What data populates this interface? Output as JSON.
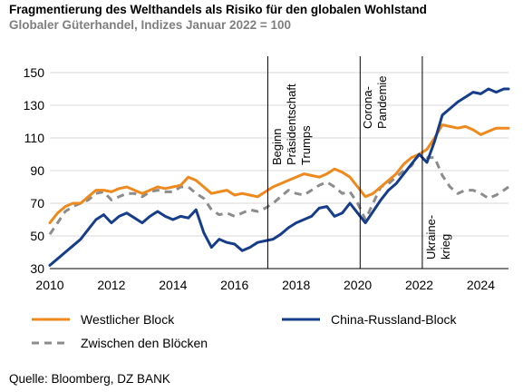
{
  "title": "Fragmentierung des Welthandels als Risiko für den globalen Wohlstand",
  "subtitle": "Globaler Güterhandel, Indizes Januar 2022 = 100",
  "source": "Quelle: Bloomberg, DZ BANK",
  "colors": {
    "westlich": "#ee8a1d",
    "china": "#163d8a",
    "zwischen": "#8c8c8c",
    "grid": "#d9d9d9",
    "event_line": "#000000"
  },
  "chart_data": {
    "type": "line",
    "title": "Fragmentierung des Welthandels als Risiko für den globalen Wohlstand",
    "subtitle": "Globaler Güterhandel, Indizes Januar 2022 = 100",
    "xlabel": "",
    "ylabel": "",
    "xlim": [
      2010,
      2024.9
    ],
    "ylim": [
      30,
      160
    ],
    "y_ticks": [
      30,
      50,
      70,
      90,
      110,
      130,
      150
    ],
    "x_ticks": [
      2010,
      2012,
      2014,
      2016,
      2018,
      2020,
      2022,
      2024
    ],
    "grid": true,
    "legend_position": "bottom",
    "series": [
      {
        "name": "Westlicher Block",
        "style": "solid",
        "x": [
          2010.0,
          2010.25,
          2010.5,
          2010.75,
          2011.0,
          2011.25,
          2011.5,
          2011.75,
          2012.0,
          2012.25,
          2012.5,
          2012.75,
          2013.0,
          2013.25,
          2013.5,
          2013.75,
          2014.0,
          2014.25,
          2014.5,
          2014.75,
          2015.0,
          2015.25,
          2015.5,
          2015.75,
          2016.0,
          2016.25,
          2016.5,
          2016.75,
          2017.0,
          2017.25,
          2017.5,
          2017.75,
          2018.0,
          2018.25,
          2018.5,
          2018.75,
          2019.0,
          2019.25,
          2019.5,
          2019.75,
          2020.0,
          2020.25,
          2020.5,
          2020.75,
          2021.0,
          2021.25,
          2021.5,
          2021.75,
          2022.0,
          2022.25,
          2022.5,
          2022.75,
          2023.0,
          2023.25,
          2023.5,
          2023.75,
          2024.0,
          2024.25,
          2024.5,
          2024.75,
          2024.9
        ],
        "values": [
          58,
          64,
          68,
          70,
          70,
          74,
          78,
          78,
          77,
          79,
          80,
          78,
          76,
          78,
          80,
          79,
          80,
          81,
          86,
          84,
          80,
          76,
          77,
          78,
          75,
          76,
          75,
          74,
          77,
          80,
          82,
          84,
          86,
          88,
          87,
          86,
          88,
          91,
          89,
          86,
          80,
          74,
          76,
          80,
          84,
          88,
          94,
          98,
          100,
          103,
          110,
          118,
          117,
          116,
          117,
          115,
          112,
          114,
          116,
          116,
          116
        ]
      },
      {
        "name": "China-Russland-Block",
        "style": "solid",
        "x": [
          2010.0,
          2010.25,
          2010.5,
          2010.75,
          2011.0,
          2011.25,
          2011.5,
          2011.75,
          2012.0,
          2012.25,
          2012.5,
          2012.75,
          2013.0,
          2013.25,
          2013.5,
          2013.75,
          2014.0,
          2014.25,
          2014.5,
          2014.75,
          2015.0,
          2015.25,
          2015.5,
          2015.75,
          2016.0,
          2016.25,
          2016.5,
          2016.75,
          2017.0,
          2017.25,
          2017.5,
          2017.75,
          2018.0,
          2018.25,
          2018.5,
          2018.75,
          2019.0,
          2019.25,
          2019.5,
          2019.75,
          2020.0,
          2020.25,
          2020.5,
          2020.75,
          2021.0,
          2021.25,
          2021.5,
          2021.75,
          2022.0,
          2022.25,
          2022.5,
          2022.75,
          2023.0,
          2023.25,
          2023.5,
          2023.75,
          2024.0,
          2024.25,
          2024.5,
          2024.75,
          2024.9
        ],
        "values": [
          32,
          36,
          40,
          44,
          48,
          54,
          60,
          63,
          58,
          62,
          64,
          61,
          58,
          62,
          65,
          62,
          60,
          62,
          61,
          66,
          52,
          43,
          48,
          46,
          45,
          41,
          43,
          46,
          47,
          48,
          51,
          55,
          58,
          60,
          62,
          67,
          68,
          62,
          64,
          70,
          64,
          58,
          65,
          72,
          78,
          82,
          88,
          94,
          100,
          95,
          108,
          124,
          128,
          132,
          135,
          138,
          137,
          140,
          138,
          140,
          140
        ]
      },
      {
        "name": "Zwischen den Blöcken",
        "style": "dashed",
        "x": [
          2010.0,
          2010.25,
          2010.5,
          2010.75,
          2011.0,
          2011.25,
          2011.5,
          2011.75,
          2012.0,
          2012.25,
          2012.5,
          2012.75,
          2013.0,
          2013.25,
          2013.5,
          2013.75,
          2014.0,
          2014.25,
          2014.5,
          2014.75,
          2015.0,
          2015.25,
          2015.5,
          2015.75,
          2016.0,
          2016.25,
          2016.5,
          2016.75,
          2017.0,
          2017.25,
          2017.5,
          2017.75,
          2018.0,
          2018.25,
          2018.5,
          2018.75,
          2019.0,
          2019.25,
          2019.5,
          2019.75,
          2020.0,
          2020.25,
          2020.5,
          2020.75,
          2021.0,
          2021.25,
          2021.5,
          2021.75,
          2022.0,
          2022.25,
          2022.5,
          2022.75,
          2023.0,
          2023.25,
          2023.5,
          2023.75,
          2024.0,
          2024.25,
          2024.5,
          2024.75,
          2024.9
        ],
        "values": [
          51,
          58,
          65,
          68,
          70,
          72,
          76,
          77,
          72,
          74,
          76,
          76,
          74,
          77,
          78,
          77,
          77,
          80,
          80,
          76,
          73,
          66,
          63,
          64,
          62,
          64,
          66,
          65,
          67,
          70,
          74,
          78,
          76,
          75,
          78,
          81,
          83,
          80,
          76,
          77,
          70,
          60,
          70,
          80,
          82,
          86,
          90,
          93,
          100,
          98,
          98,
          87,
          80,
          76,
          78,
          78,
          76,
          73,
          75,
          78,
          80
        ]
      }
    ],
    "events": [
      {
        "x": 2017.08,
        "label_lines": [
          "Beginn",
          "Präsidentschaft",
          "Trumps"
        ]
      },
      {
        "x": 2020.08,
        "label_lines": [
          "Corona-",
          "Pandemie"
        ]
      },
      {
        "x": 2022.1,
        "label_lines": [
          "Ukraine-",
          "krieg"
        ]
      }
    ]
  }
}
